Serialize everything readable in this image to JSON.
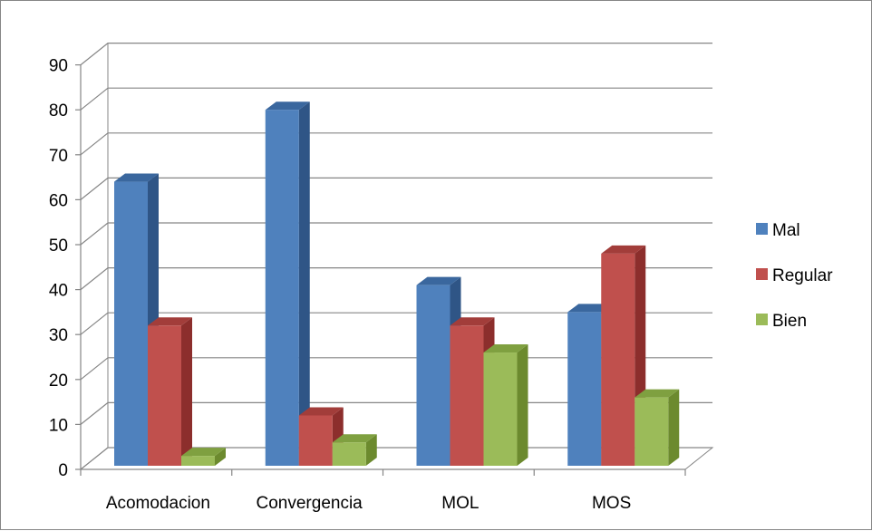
{
  "chart_data": {
    "type": "bar",
    "categories": [
      "Acomodacion",
      "Convergencia",
      "MOL",
      "MOS"
    ],
    "series": [
      {
        "name": "Mal",
        "values": [
          64,
          80,
          41,
          35
        ]
      },
      {
        "name": "Regular",
        "values": [
          32,
          12,
          32,
          48
        ]
      },
      {
        "name": "Bien",
        "values": [
          3,
          6,
          26,
          16
        ]
      }
    ],
    "ylim": [
      0,
      90
    ],
    "yticks": [
      0,
      10,
      20,
      30,
      40,
      50,
      60,
      70,
      80,
      90
    ],
    "grid": true,
    "legend": "right",
    "style": "3d-clustered-column",
    "colors": {
      "Mal": {
        "front": "#4F81BD",
        "side": "#2F5586",
        "top": "#3A679E"
      },
      "Regular": {
        "front": "#C0504D",
        "side": "#8C2E2C",
        "top": "#A23D3A"
      },
      "Bien": {
        "front": "#9BBB59",
        "side": "#6C8A2E",
        "top": "#7FA040"
      }
    }
  }
}
